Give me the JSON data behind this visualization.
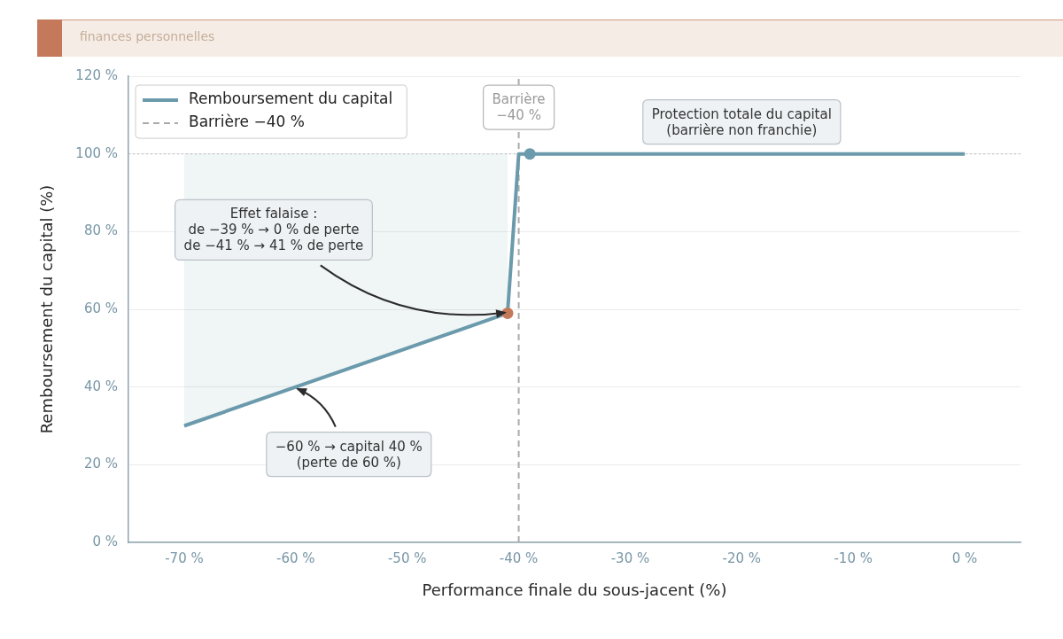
{
  "chart_data": {
    "type": "line",
    "subtitle": "finances personnelles",
    "xlabel": "Performance finale du sous-jacent (%)",
    "ylabel": "Remboursement du capital (%)",
    "series": [
      {
        "name": "Remboursement du capital",
        "color": "#6a9aab",
        "x": [
          -70,
          -41,
          -40,
          0
        ],
        "values": [
          30,
          59,
          100,
          100
        ],
        "lower": [
          30,
          59,
          null,
          null
        ],
        "upper": [
          100,
          100,
          null,
          null
        ],
        "marker": "none",
        "line_style": "solid"
      },
      {
        "name": "Barrière −40 %",
        "color": "#aaaaaa",
        "x": [
          -40,
          -40
        ],
        "values": [
          0,
          120
        ],
        "marker": "none",
        "line_style": "dashed"
      },
      {
        "type": "scatter",
        "color": "#c47a5a",
        "x": [
          -41
        ],
        "values": [
          59
        ],
        "marker": "circle"
      },
      {
        "type": "scatter",
        "color": "#6a9aab",
        "x": [
          -39
        ],
        "values": [
          100
        ],
        "marker": "circle"
      }
    ],
    "xlim": [
      -75,
      5
    ],
    "xticks": [
      {
        "value": -70,
        "label": "-70 %"
      },
      {
        "value": -60,
        "label": "-60 %"
      },
      {
        "value": -50,
        "label": "-50 %"
      },
      {
        "value": -40,
        "label": "-40 %"
      },
      {
        "value": -30,
        "label": "-30 %"
      },
      {
        "value": -20,
        "label": "-20 %"
      },
      {
        "value": -10,
        "label": "-10 %"
      },
      {
        "value": 0,
        "label": "0 %"
      }
    ],
    "ylim": [
      0,
      120
    ],
    "yticks": [
      {
        "value": 0,
        "label": "0 %"
      },
      {
        "value": 20,
        "label": "20 %"
      },
      {
        "value": 40,
        "label": "40 %"
      },
      {
        "value": 60,
        "label": "60 %"
      },
      {
        "value": 80,
        "label": "80 %"
      },
      {
        "value": 100,
        "label": "100 %"
      },
      {
        "value": 120,
        "label": "120 %"
      }
    ],
    "grid": "y",
    "legend": "top left",
    "ref_lines": [
      {
        "axis": "y",
        "value": 100,
        "color": "#bbbbbb",
        "line_style": "dotted"
      }
    ],
    "annotations": [
      {
        "text": "Barrière\n−40 %",
        "x": -40,
        "y": 112
      },
      {
        "text": "Protection totale du capital\n(barrière non franchie)",
        "x": -20,
        "y": 100
      },
      {
        "text": "Effet falaise :\nde −39 % → 0 % de perte\nde −41 % → 41 % de perte",
        "x": -41,
        "y": 59
      },
      {
        "text": "−60 % → capital 40 %\n(perte de 60 %)",
        "x": -60,
        "y": 40
      }
    ]
  }
}
